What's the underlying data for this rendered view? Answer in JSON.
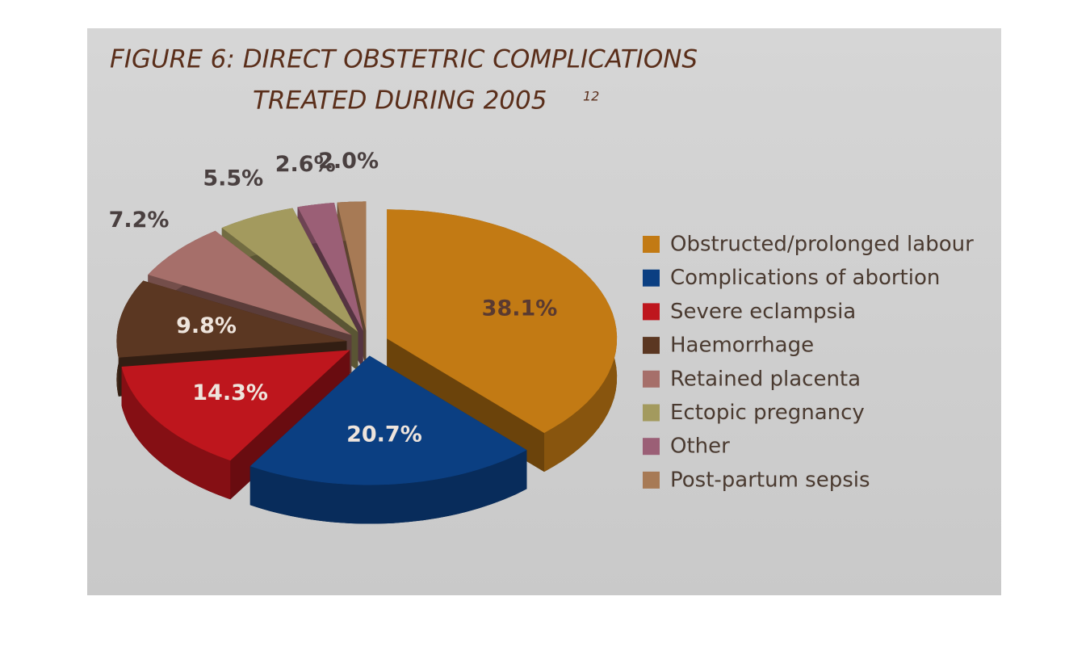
{
  "chart_data": {
    "type": "pie",
    "title": [
      "FIGURE 6: DIRECT OBSTETRIC COMPLICATIONS",
      "TREATED DURING 2005"
    ],
    "title_note": "12",
    "categories": [
      "Obstructed/prolonged labour",
      "Complications of abortion",
      "Severe eclampsia",
      "Haemorrhage",
      "Retained placenta",
      "Ectopic pregnancy",
      "Other",
      "Post-partum sepsis"
    ],
    "values": [
      38.1,
      20.7,
      14.3,
      9.8,
      7.2,
      5.5,
      2.6,
      2.0
    ],
    "value_labels": [
      "38.1%",
      "20.7%",
      "14.3%",
      "9.8%",
      "7.2%",
      "5.5%",
      "2.6%",
      "2.0%"
    ],
    "colors": [
      "#c27a14",
      "#0b3f82",
      "#be161d",
      "#5b3722",
      "#a66f6a",
      "#a39a5e",
      "#9b5f76",
      "#a77a55"
    ],
    "legend": "right"
  }
}
